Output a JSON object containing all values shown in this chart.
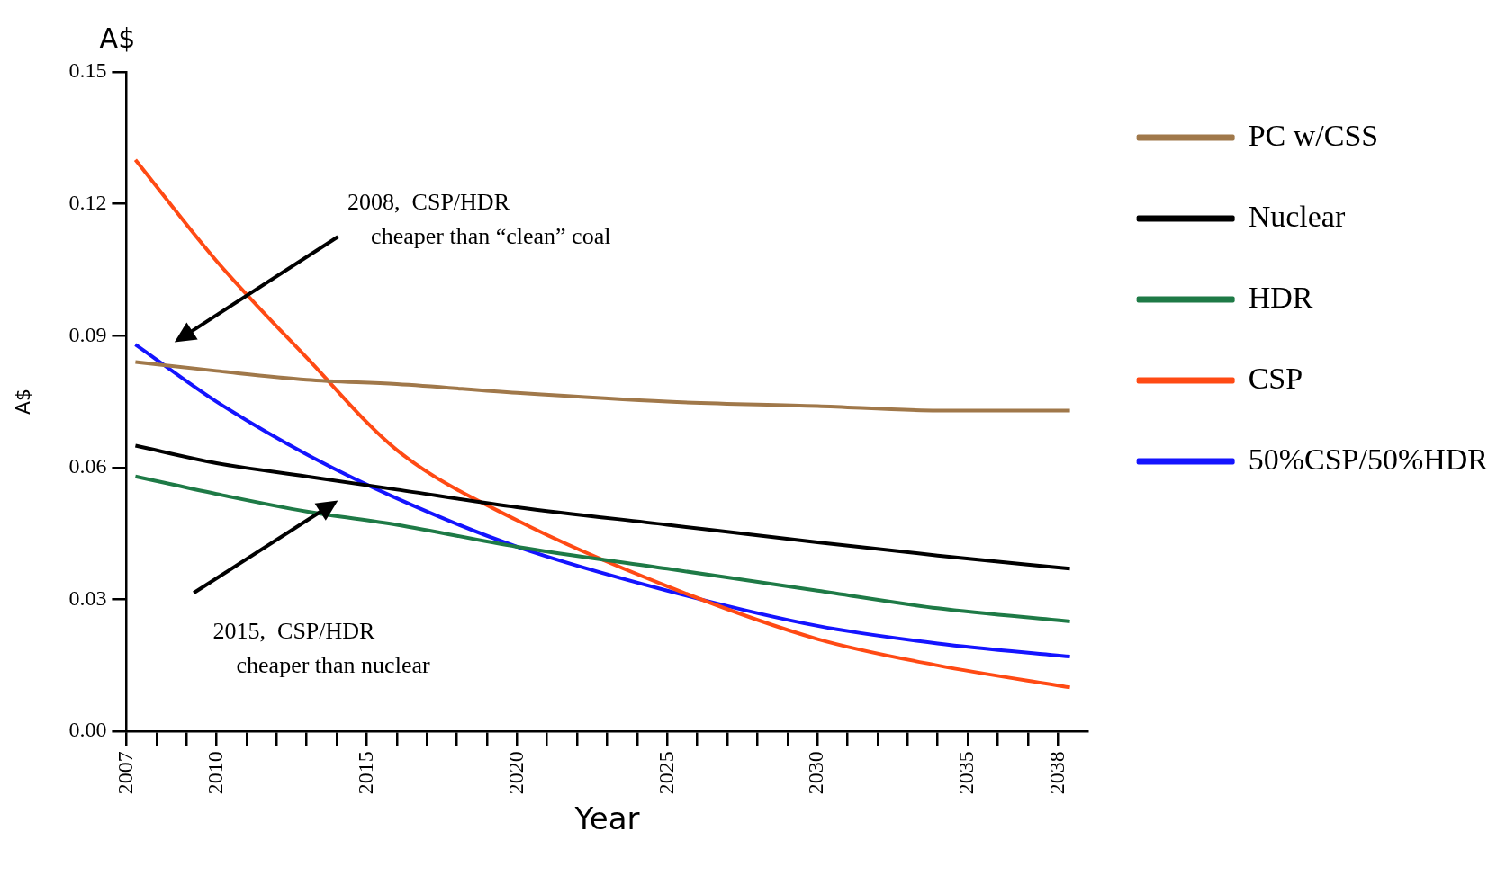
{
  "chart_data": {
    "type": "line",
    "xlabel": "Year",
    "ylabel": "A$",
    "x": [
      2007.3,
      2010,
      2013,
      2016,
      2020,
      2025,
      2030,
      2034,
      2038.4
    ],
    "series": [
      {
        "name": "PC w/CSS",
        "color": "#a0784a",
        "values": [
          0.084,
          0.082,
          0.08,
          0.079,
          0.077,
          0.075,
          0.074,
          0.073,
          0.073
        ]
      },
      {
        "name": "Nuclear",
        "color": "#000000",
        "values": [
          0.065,
          0.061,
          0.058,
          0.055,
          0.051,
          0.047,
          0.043,
          0.04,
          0.037
        ]
      },
      {
        "name": "HDR",
        "color": "#1e7a46",
        "values": [
          0.058,
          0.054,
          0.05,
          0.047,
          0.042,
          0.037,
          0.032,
          0.028,
          0.025
        ]
      },
      {
        "name": "CSP",
        "color": "#ff4a14",
        "values": [
          0.13,
          0.107,
          0.085,
          0.064,
          0.048,
          0.033,
          0.021,
          0.015,
          0.01
        ]
      },
      {
        "name": "50%CSP/50%HDR",
        "color": "#1414ff",
        "values": [
          0.088,
          0.075,
          0.063,
          0.053,
          0.042,
          0.032,
          0.024,
          0.02,
          0.017
        ]
      }
    ],
    "xlim": [
      2007,
      2039
    ],
    "xticks": [
      2007,
      {
        "value": 2008,
        "label": null
      },
      {
        "value": 2009,
        "label": null
      },
      2010,
      {
        "value": 2011,
        "label": null
      },
      {
        "value": 2012,
        "label": null
      },
      {
        "value": 2013,
        "label": null
      },
      {
        "value": 2014,
        "label": null
      },
      2015,
      {
        "value": 2016,
        "label": null
      },
      {
        "value": 2017,
        "label": null
      },
      {
        "value": 2018,
        "label": null
      },
      {
        "value": 2019,
        "label": null
      },
      2020,
      {
        "value": 2021,
        "label": null
      },
      {
        "value": 2022,
        "label": null
      },
      {
        "value": 2023,
        "label": null
      },
      {
        "value": 2024,
        "label": null
      },
      2025,
      {
        "value": 2026,
        "label": null
      },
      {
        "value": 2027,
        "label": null
      },
      {
        "value": 2028,
        "label": null
      },
      {
        "value": 2029,
        "label": null
      },
      2030,
      {
        "value": 2031,
        "label": null
      },
      {
        "value": 2032,
        "label": null
      },
      {
        "value": 2033,
        "label": null
      },
      {
        "value": 2034,
        "label": null
      },
      2035,
      {
        "value": 2036,
        "label": null
      },
      {
        "value": 2037,
        "label": null
      },
      2038
    ],
    "ylim": [
      0,
      0.15
    ],
    "yticks": [
      {
        "value": 0,
        "label": "0.00"
      },
      0.03,
      0.06,
      0.09,
      0.12,
      0.15
    ],
    "grid": false,
    "legend": "right",
    "marker": "none",
    "line_style": "solid",
    "annotations": [
      "A$",
      "2008,  CSP/HDR\n    cheaper than “clean” coal",
      "2015,  CSP/HDR\n    cheaper than nuclear"
    ]
  }
}
